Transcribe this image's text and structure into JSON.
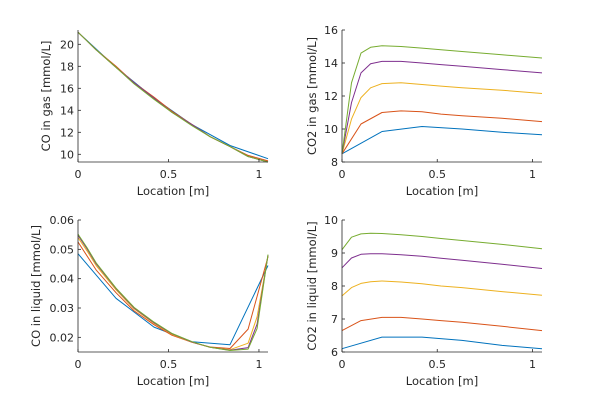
{
  "colors": {
    "axes": "#262626",
    "series": [
      "#0072BD",
      "#D95319",
      "#EDB120",
      "#7E2F8E",
      "#77AC30"
    ]
  },
  "chart_data": [
    {
      "type": "line",
      "xlabel": "Location [m]",
      "ylabel": "CO in gas [mmol/L]",
      "xlim": [
        0,
        1.05
      ],
      "ylim": [
        9.3,
        21.3
      ],
      "xticks": [
        0,
        0.5,
        1
      ],
      "xticklabels": [
        "0",
        "0.5",
        "1"
      ],
      "yticks": [
        10,
        12,
        14,
        16,
        18,
        20
      ],
      "yticklabels": [
        "10",
        "12",
        "14",
        "16",
        "18",
        "20"
      ],
      "series": [
        {
          "x": [
            0,
            0.21,
            0.42,
            0.63,
            0.84,
            1.05
          ],
          "y": [
            21.1,
            17.9,
            15.1,
            12.7,
            10.8,
            9.6
          ]
        },
        {
          "x": [
            0,
            0.1,
            0.21,
            0.31,
            0.42,
            0.52,
            0.63,
            0.73,
            0.84,
            0.94,
            1.05
          ],
          "y": [
            21.1,
            19.5,
            18.0,
            16.5,
            15.2,
            13.9,
            12.7,
            11.6,
            10.7,
            9.9,
            9.4
          ]
        },
        {
          "x": [
            0,
            0.1,
            0.21,
            0.31,
            0.42,
            0.52,
            0.63,
            0.73,
            0.84,
            0.94,
            1.05
          ],
          "y": [
            21.1,
            19.5,
            17.9,
            16.5,
            15.1,
            13.8,
            12.7,
            11.6,
            10.7,
            9.8,
            9.3
          ]
        },
        {
          "x": [
            0,
            0.1,
            0.21,
            0.31,
            0.42,
            0.52,
            0.63,
            0.73,
            0.84,
            0.94,
            1.05
          ],
          "y": [
            21.1,
            19.5,
            17.9,
            16.5,
            15.1,
            13.8,
            12.7,
            11.6,
            10.7,
            9.8,
            9.3
          ]
        },
        {
          "x": [
            0,
            0.1,
            0.21,
            0.31,
            0.42,
            0.52,
            0.63,
            0.73,
            0.84,
            0.94,
            1.05
          ],
          "y": [
            21.1,
            19.5,
            17.9,
            16.4,
            15.0,
            13.8,
            12.6,
            11.6,
            10.7,
            9.8,
            9.3
          ]
        }
      ]
    },
    {
      "type": "line",
      "xlabel": "Location [m]",
      "ylabel": "CO2 in gas [mmol/L]",
      "xlim": [
        0,
        1.05
      ],
      "ylim": [
        8,
        16
      ],
      "xticks": [
        0,
        0.5,
        1
      ],
      "xticklabels": [
        "0",
        "0.5",
        "1"
      ],
      "yticks": [
        8,
        10,
        12,
        14,
        16
      ],
      "yticklabels": [
        "8",
        "10",
        "12",
        "14",
        "16"
      ],
      "series": [
        {
          "x": [
            0,
            0.21,
            0.42,
            0.63,
            0.84,
            1.05
          ],
          "y": [
            8.5,
            9.85,
            10.15,
            10.0,
            9.8,
            9.65
          ]
        },
        {
          "x": [
            0,
            0.1,
            0.21,
            0.31,
            0.42,
            0.52,
            0.63,
            0.84,
            1.05
          ],
          "y": [
            8.5,
            10.3,
            11.0,
            11.1,
            11.05,
            10.9,
            10.8,
            10.65,
            10.45
          ]
        },
        {
          "x": [
            0,
            0.05,
            0.1,
            0.15,
            0.21,
            0.31,
            0.42,
            0.52,
            0.63,
            0.84,
            1.05
          ],
          "y": [
            8.5,
            10.6,
            11.9,
            12.5,
            12.75,
            12.8,
            12.7,
            12.6,
            12.5,
            12.35,
            12.15
          ]
        },
        {
          "x": [
            0,
            0.05,
            0.1,
            0.15,
            0.21,
            0.31,
            0.42,
            0.52,
            0.63,
            0.84,
            1.05
          ],
          "y": [
            8.5,
            11.6,
            13.4,
            13.95,
            14.1,
            14.1,
            14.0,
            13.9,
            13.8,
            13.6,
            13.4
          ]
        },
        {
          "x": [
            0,
            0.05,
            0.1,
            0.15,
            0.21,
            0.31,
            0.42,
            0.52,
            0.63,
            0.84,
            1.05
          ],
          "y": [
            8.5,
            12.8,
            14.6,
            14.95,
            15.05,
            15.0,
            14.9,
            14.8,
            14.7,
            14.5,
            14.3
          ]
        }
      ]
    },
    {
      "type": "line",
      "xlabel": "Location [m]",
      "ylabel": "CO in liquid [mmol/L]",
      "xlim": [
        0,
        1.05
      ],
      "ylim": [
        0.015,
        0.06
      ],
      "xticks": [
        0,
        0.5,
        1
      ],
      "xticklabels": [
        "0",
        "0.5",
        "1"
      ],
      "yticks": [
        0.02,
        0.03,
        0.04,
        0.05,
        0.06
      ],
      "yticklabels": [
        "0.02",
        "0.03",
        "0.04",
        "0.05",
        "0.06"
      ],
      "series": [
        {
          "x": [
            0,
            0.21,
            0.42,
            0.63,
            0.84,
            1.05
          ],
          "y": [
            0.0485,
            0.0333,
            0.0235,
            0.0185,
            0.0175,
            0.0445
          ]
        },
        {
          "x": [
            0,
            0.1,
            0.21,
            0.31,
            0.42,
            0.52,
            0.63,
            0.73,
            0.84,
            0.94,
            1.05
          ],
          "y": [
            0.0525,
            0.043,
            0.0352,
            0.029,
            0.0243,
            0.0207,
            0.0183,
            0.0167,
            0.0162,
            0.0228,
            0.0475
          ]
        },
        {
          "x": [
            0,
            0.05,
            0.1,
            0.21,
            0.31,
            0.42,
            0.52,
            0.63,
            0.73,
            0.84,
            0.94,
            0.99,
            1.05
          ],
          "y": [
            0.054,
            0.0495,
            0.0445,
            0.0362,
            0.0297,
            0.0248,
            0.021,
            0.0183,
            0.0166,
            0.0158,
            0.018,
            0.027,
            0.0478
          ]
        },
        {
          "x": [
            0,
            0.05,
            0.1,
            0.21,
            0.31,
            0.42,
            0.52,
            0.63,
            0.73,
            0.84,
            0.94,
            0.99,
            1.05
          ],
          "y": [
            0.0548,
            0.0502,
            0.0451,
            0.0366,
            0.03,
            0.025,
            0.0212,
            0.0184,
            0.0166,
            0.0156,
            0.0165,
            0.0245,
            0.048
          ]
        },
        {
          "x": [
            0,
            0.05,
            0.1,
            0.21,
            0.31,
            0.42,
            0.52,
            0.63,
            0.73,
            0.84,
            0.94,
            0.99,
            1.05
          ],
          "y": [
            0.0552,
            0.0506,
            0.0454,
            0.0368,
            0.0302,
            0.0252,
            0.0213,
            0.0185,
            0.0166,
            0.0155,
            0.016,
            0.023,
            0.0482
          ]
        }
      ]
    },
    {
      "type": "line",
      "xlabel": "Location [m]",
      "ylabel": "CO2 in liquid [mmol/L]",
      "xlim": [
        0,
        1.05
      ],
      "ylim": [
        6,
        10
      ],
      "xticks": [
        0,
        0.5,
        1
      ],
      "xticklabels": [
        "0",
        "0.5",
        "1"
      ],
      "yticks": [
        6,
        7,
        8,
        9,
        10
      ],
      "yticklabels": [
        "6",
        "7",
        "8",
        "9",
        "10"
      ],
      "series": [
        {
          "x": [
            0,
            0.21,
            0.42,
            0.63,
            0.84,
            1.05
          ],
          "y": [
            6.1,
            6.45,
            6.45,
            6.35,
            6.2,
            6.1
          ]
        },
        {
          "x": [
            0,
            0.1,
            0.21,
            0.31,
            0.42,
            0.52,
            0.63,
            0.84,
            1.05
          ],
          "y": [
            6.65,
            6.95,
            7.05,
            7.05,
            7.0,
            6.95,
            6.9,
            6.78,
            6.65
          ]
        },
        {
          "x": [
            0,
            0.05,
            0.1,
            0.15,
            0.21,
            0.31,
            0.42,
            0.52,
            0.63,
            0.84,
            1.05
          ],
          "y": [
            7.7,
            7.95,
            8.08,
            8.13,
            8.15,
            8.12,
            8.07,
            8.0,
            7.95,
            7.83,
            7.72
          ]
        },
        {
          "x": [
            0,
            0.05,
            0.1,
            0.15,
            0.21,
            0.31,
            0.42,
            0.52,
            0.63,
            0.84,
            1.05
          ],
          "y": [
            8.55,
            8.85,
            8.96,
            8.98,
            8.98,
            8.95,
            8.9,
            8.84,
            8.78,
            8.66,
            8.53
          ]
        },
        {
          "x": [
            0,
            0.05,
            0.1,
            0.15,
            0.21,
            0.31,
            0.42,
            0.52,
            0.63,
            0.84,
            1.05
          ],
          "y": [
            9.1,
            9.48,
            9.58,
            9.6,
            9.59,
            9.55,
            9.5,
            9.44,
            9.38,
            9.26,
            9.13
          ]
        }
      ]
    }
  ]
}
